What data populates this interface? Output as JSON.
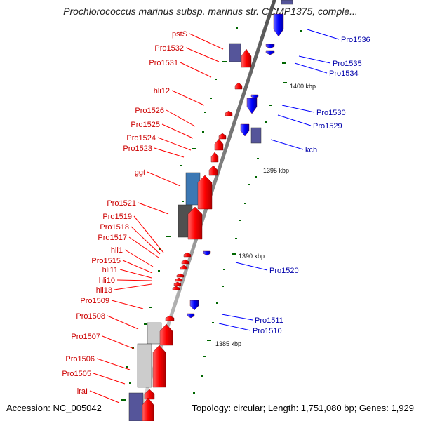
{
  "title": "Prochlorococcus marinus subsp. marinus str. CCMP1375, comple...",
  "footer": {
    "accession": "Accession: NC_005042",
    "topology": "Topology: circular; Length: 1,751,080 bp; Genes: 1,929"
  },
  "colors": {
    "backbone": "#8c8c8c",
    "forward_gene": "#ff0000",
    "reverse_gene": "#0000ff",
    "forward_label": "#cc0000",
    "reverse_label": "#0000aa",
    "tick": "#006600",
    "rna_blue": "#3c78b4",
    "dark_gray": "#505050",
    "light_gray": "#cccccc",
    "purple": "#55559a"
  },
  "kbp_labels": [
    "1400 kbp",
    "1395 kbp",
    "1390 kbp",
    "1385 kbp"
  ],
  "forward_labels": [
    "pstS",
    "Pro1532",
    "Pro1531",
    "hli12",
    "Pro1526",
    "Pro1525",
    "Pro1524",
    "Pro1523",
    "ggt",
    "Pro1521",
    "Pro1519",
    "Pro1518",
    "Pro1517",
    "hli1",
    "Pro1515",
    "hli11",
    "hli10",
    "hli13",
    "Pro1509",
    "Pro1508",
    "Pro1507",
    "Pro1506",
    "Pro1505",
    "lraI"
  ],
  "reverse_labels": [
    "Pro1536",
    "Pro1535",
    "Pro1534",
    "Pro1530",
    "Pro1529",
    "kch",
    "Pro1520",
    "Pro1511",
    "Pro1510"
  ]
}
